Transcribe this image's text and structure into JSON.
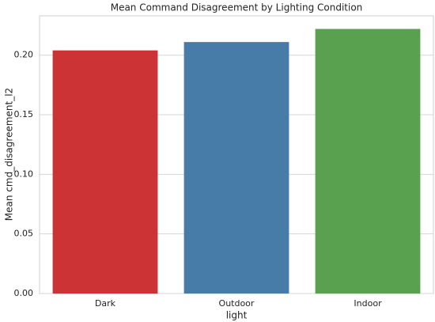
{
  "chart_data": {
    "type": "bar",
    "title": "Mean Command Disagreement by Lighting Condition",
    "x_label": "light",
    "y_label": "Mean cmd_disagreement_l2",
    "categories": [
      "Dark",
      "Outdoor",
      "Indoor"
    ],
    "values": [
      0.204,
      0.211,
      0.222
    ],
    "colors": [
      "#cb3335",
      "#477ca8",
      "#59a14f"
    ],
    "ylim": [
      0,
      0.233
    ],
    "yticks": [
      {
        "value": 0,
        "label": "0.00"
      },
      {
        "value": 0.05,
        "label": "0.05"
      },
      {
        "value": 0.1,
        "label": "0.10"
      },
      {
        "value": 0.15,
        "label": "0.15"
      },
      {
        "value": 0.2,
        "label": "0.20"
      }
    ],
    "grid": true
  }
}
